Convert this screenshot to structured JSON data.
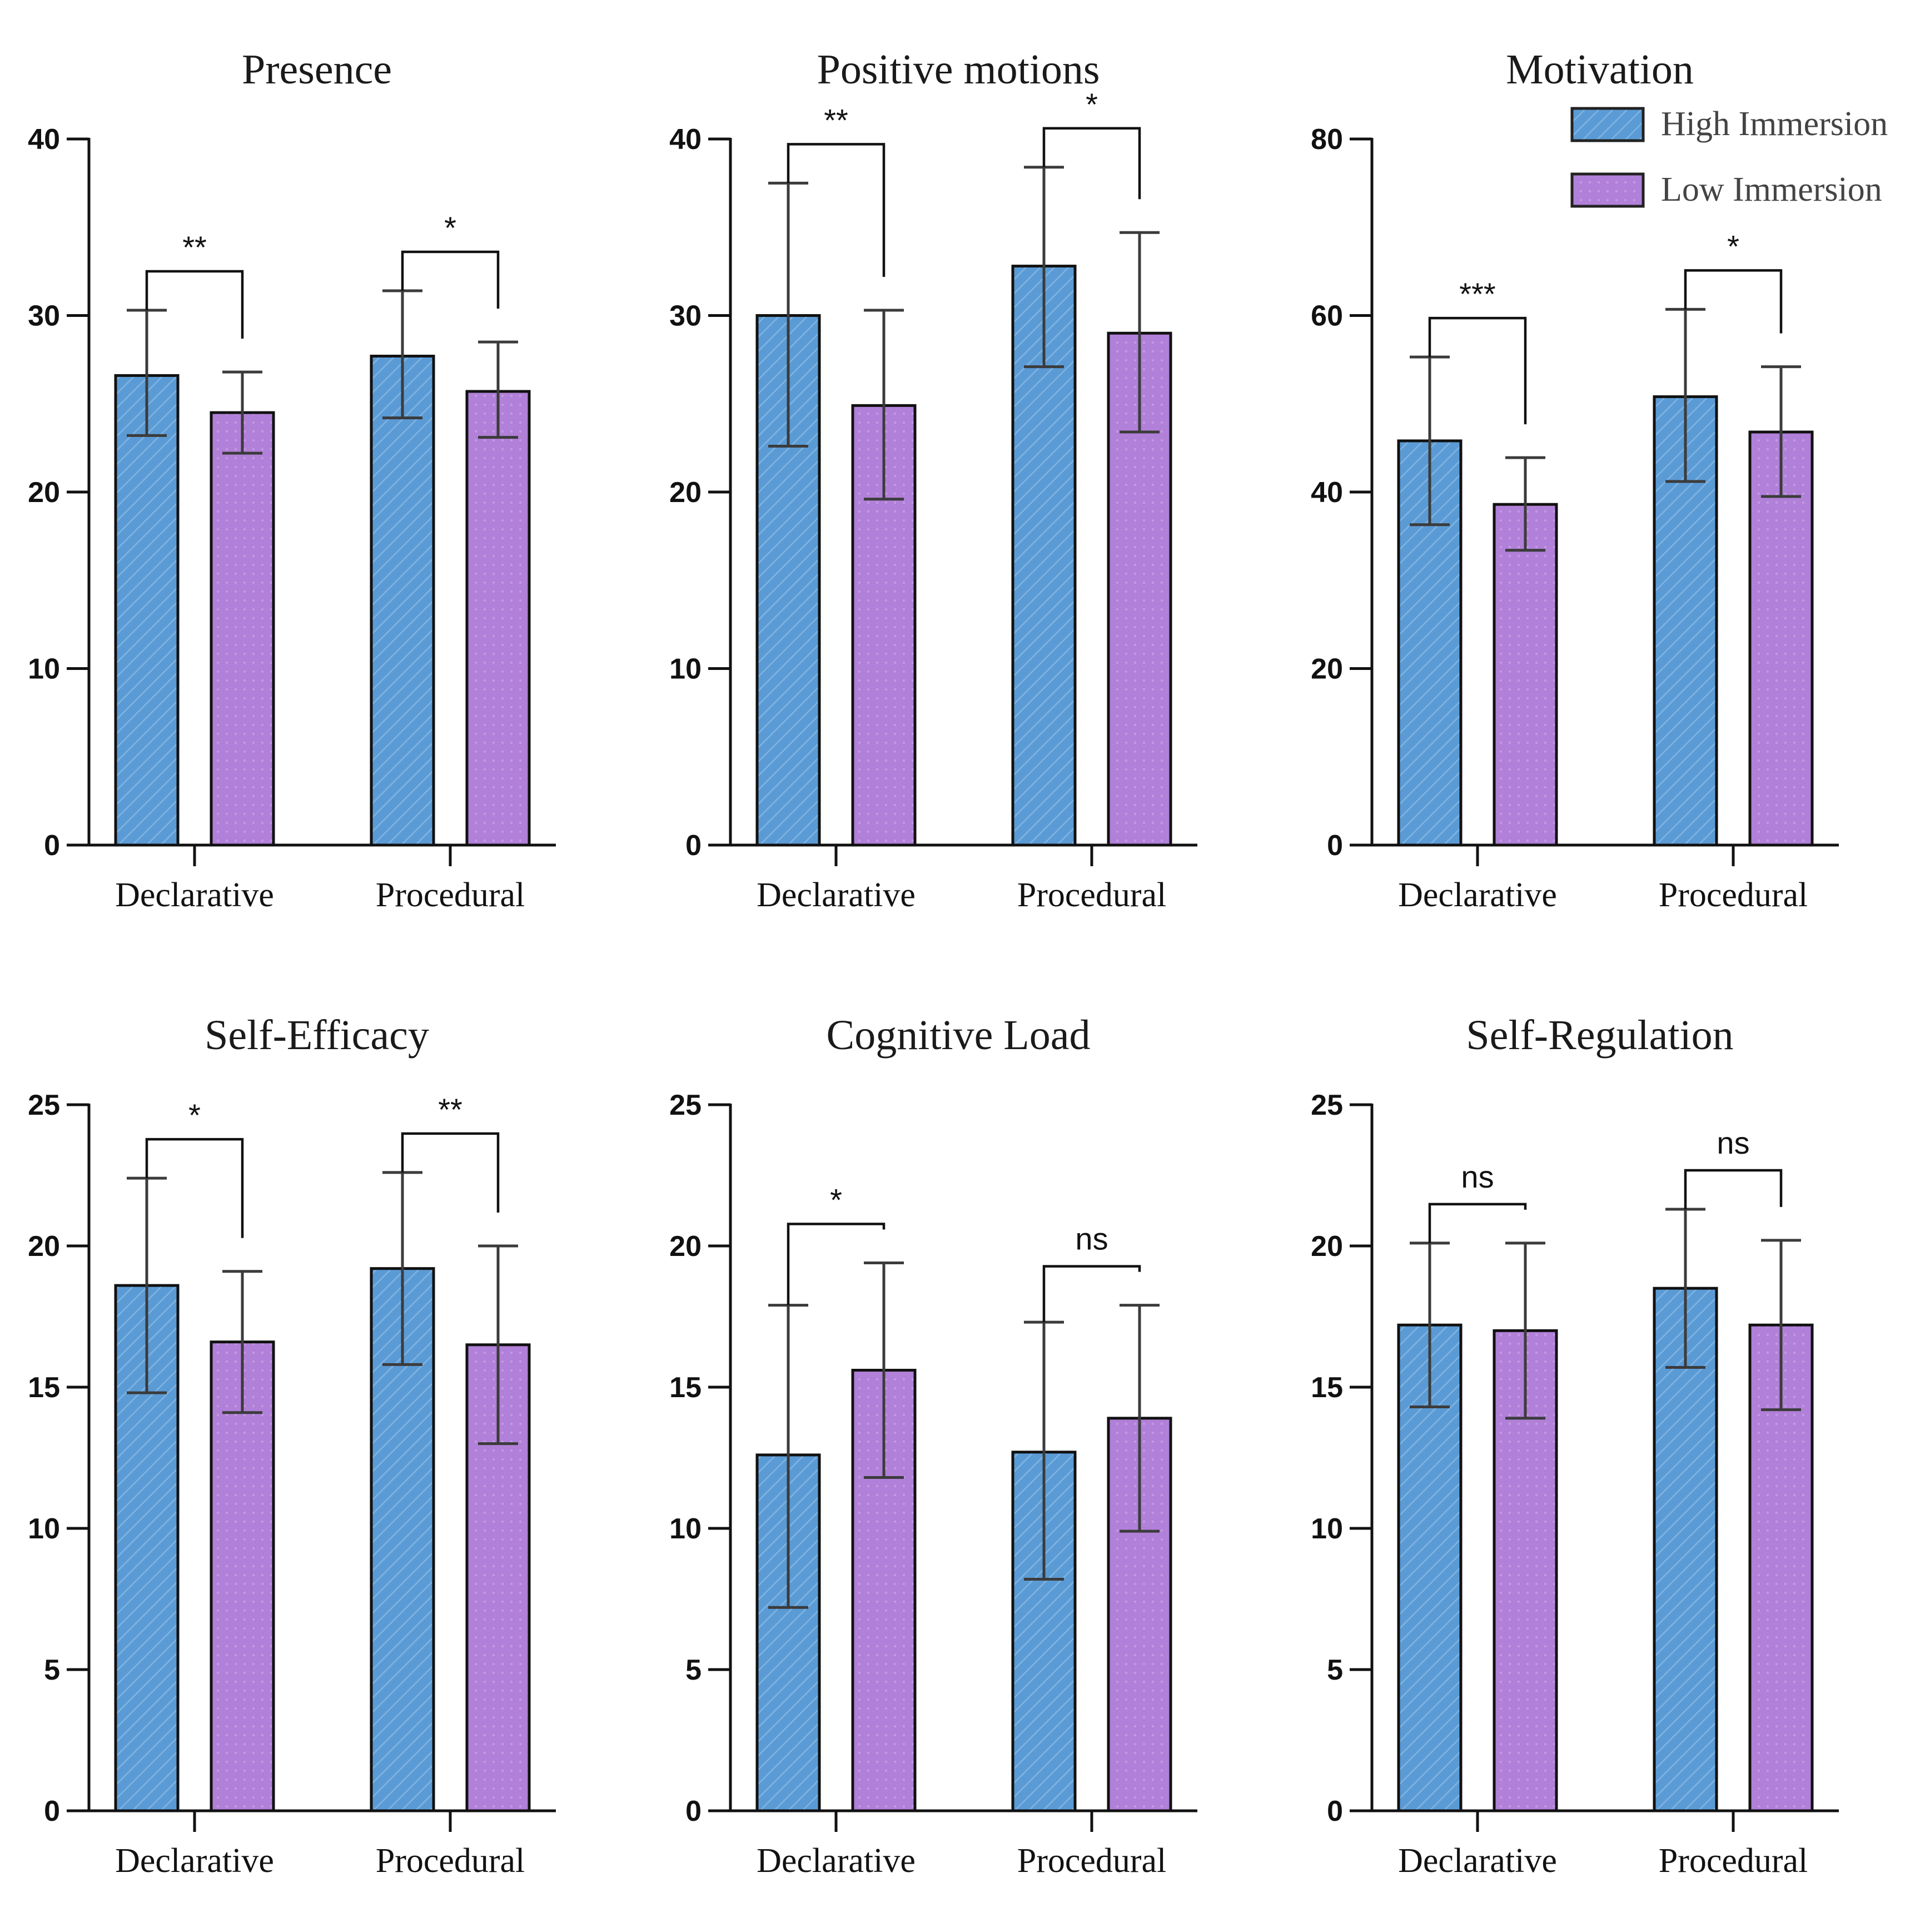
{
  "colors": {
    "high": "#5b9bd5",
    "high_stripe": "#7fb3e2",
    "low": "#b180d8",
    "low_dot": "#c39ae3"
  },
  "chart_data": [
    {
      "type": "bar",
      "title": "Presence",
      "categories": [
        "Declarative",
        "Procedural"
      ],
      "ylim": [
        0,
        40
      ],
      "yticks": [
        0,
        10,
        20,
        30,
        40
      ],
      "series": [
        {
          "name": "High Immersion",
          "values": [
            26.6,
            27.7
          ],
          "err_low": [
            23.2,
            24.2
          ],
          "err_high": [
            30.3,
            31.4
          ]
        },
        {
          "name": "Low Immersion",
          "values": [
            24.5,
            25.7
          ],
          "err_low": [
            22.2,
            23.1
          ],
          "err_high": [
            26.8,
            28.5
          ]
        }
      ],
      "significance": [
        "**",
        "*"
      ]
    },
    {
      "type": "bar",
      "title": "Positive motions",
      "categories": [
        "Declarative",
        "Procedural"
      ],
      "ylim": [
        0,
        40
      ],
      "yticks": [
        0,
        10,
        20,
        30,
        40
      ],
      "series": [
        {
          "name": "High Immersion",
          "values": [
            30.0,
            32.8
          ],
          "err_low": [
            22.6,
            27.1
          ],
          "err_high": [
            37.5,
            38.4
          ]
        },
        {
          "name": "Low Immersion",
          "values": [
            24.9,
            29.0
          ],
          "err_low": [
            19.6,
            23.4
          ],
          "err_high": [
            30.3,
            34.7
          ]
        }
      ],
      "significance": [
        "**",
        "*"
      ]
    },
    {
      "type": "bar",
      "title": "Motivation",
      "categories": [
        "Declarative",
        "Procedural"
      ],
      "ylim": [
        0,
        80
      ],
      "yticks": [
        0,
        20,
        40,
        60,
        80
      ],
      "series": [
        {
          "name": "High Immersion",
          "values": [
            45.8,
            50.8
          ],
          "err_low": [
            36.3,
            41.2
          ],
          "err_high": [
            55.3,
            60.7
          ]
        },
        {
          "name": "Low Immersion",
          "values": [
            38.6,
            46.8
          ],
          "err_low": [
            33.4,
            39.5
          ],
          "err_high": [
            43.9,
            54.2
          ]
        }
      ],
      "significance": [
        "***",
        "*"
      ],
      "legend": {
        "position": "top-right",
        "entries": [
          "High Immersion",
          "Low Immersion"
        ]
      }
    },
    {
      "type": "bar",
      "title": "Self-Efficacy",
      "categories": [
        "Declarative",
        "Procedural"
      ],
      "ylim": [
        0,
        25
      ],
      "yticks": [
        0,
        5,
        10,
        15,
        20,
        25
      ],
      "series": [
        {
          "name": "High Immersion",
          "values": [
            18.6,
            19.2
          ],
          "err_low": [
            14.8,
            15.8
          ],
          "err_high": [
            22.4,
            22.6
          ]
        },
        {
          "name": "Low Immersion",
          "values": [
            16.6,
            16.5
          ],
          "err_low": [
            14.1,
            13.0
          ],
          "err_high": [
            19.1,
            20.0
          ]
        }
      ],
      "significance": [
        "*",
        "**"
      ]
    },
    {
      "type": "bar",
      "title": "Cognitive Load",
      "categories": [
        "Declarative",
        "Procedural"
      ],
      "ylim": [
        0,
        25
      ],
      "yticks": [
        0,
        5,
        10,
        15,
        20,
        25
      ],
      "series": [
        {
          "name": "High Immersion",
          "values": [
            12.6,
            12.7
          ],
          "err_low": [
            7.2,
            8.2
          ],
          "err_high": [
            17.9,
            17.3
          ]
        },
        {
          "name": "Low Immersion",
          "values": [
            15.6,
            13.9
          ],
          "err_low": [
            11.8,
            9.9
          ],
          "err_high": [
            19.4,
            17.9
          ]
        }
      ],
      "significance": [
        "*",
        "ns"
      ]
    },
    {
      "type": "bar",
      "title": "Self-Regulation",
      "categories": [
        "Declarative",
        "Procedural"
      ],
      "ylim": [
        0,
        25
      ],
      "yticks": [
        0,
        5,
        10,
        15,
        20,
        25
      ],
      "series": [
        {
          "name": "High Immersion",
          "values": [
            17.2,
            18.5
          ],
          "err_low": [
            14.3,
            15.7
          ],
          "err_high": [
            20.1,
            21.3
          ]
        },
        {
          "name": "Low Immersion",
          "values": [
            17.0,
            17.2
          ],
          "err_low": [
            13.9,
            14.2
          ],
          "err_high": [
            20.1,
            20.2
          ]
        }
      ],
      "significance": [
        "ns",
        "ns"
      ]
    }
  ]
}
